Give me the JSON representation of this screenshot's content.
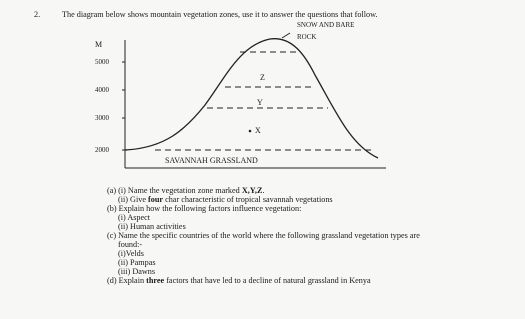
{
  "question_number": "2.",
  "intro": "The diagram below shows mountain vegetation zones, use it to answer the questions that follow.",
  "diagram": {
    "unit": "M",
    "altitudes": [
      "5000",
      "4000",
      "3000",
      "2000"
    ],
    "top_label": [
      "SNOW AND BARE",
      "ROCK"
    ],
    "zones": [
      "Z",
      "Y",
      "X"
    ],
    "base_label": "SAVANNAH GRASSLAND"
  },
  "questions": [
    [
      "(a) (i) Name the vegetation zone marked ",
      "X,Y,Z",
      "."
    ],
    [
      "(ii) Give ",
      "four",
      " char characteristic of tropical savannah vegetations"
    ],
    [
      "(b) Explain how the following factors influence vegetation:"
    ],
    [
      "(i) Aspect"
    ],
    [
      "(ii) Human activities"
    ],
    [
      "(c) Name the specific countries of the world where the following grassland vegetation types are"
    ],
    [
      "found:-"
    ],
    [
      "(i)Velds"
    ],
    [
      "(ii) Pampas"
    ],
    [
      "(iii) Dawns"
    ],
    [
      "(d) Explain ",
      "three",
      " factors that have led to a decline of natural grassland in Kenya"
    ]
  ]
}
